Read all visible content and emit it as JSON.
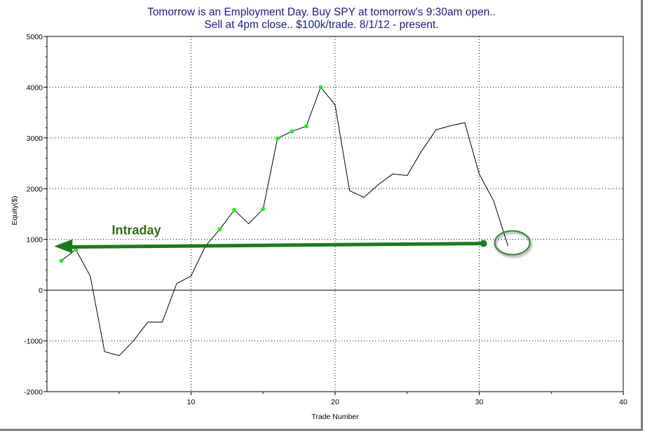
{
  "chart_data": {
    "type": "line",
    "title": "Tomorrow is an Employment Day. Buy SPY at tomorrow's 9:30am open..",
    "subtitle": "Sell at 4pm close.. $100k/trade. 8/1/12 - present.",
    "xlabel": "Trade Number",
    "ylabel": "Equity($)",
    "xlim": [
      0,
      40
    ],
    "ylim": [
      -2000,
      5000
    ],
    "x_ticks": [
      10,
      20,
      30,
      40
    ],
    "y_ticks": [
      -2000,
      -1000,
      0,
      1000,
      2000,
      3000,
      4000,
      5000
    ],
    "grid": true,
    "line_color": "#000000",
    "marker_color": "#22ee22",
    "series": [
      {
        "x": [
          1,
          2,
          3,
          4,
          5,
          6,
          7,
          8,
          9,
          10,
          11,
          12,
          13,
          14,
          15,
          16,
          17,
          18,
          19,
          20,
          21,
          22,
          23,
          24,
          25,
          26,
          27,
          28,
          29,
          30,
          31,
          32
        ],
        "values": [
          580,
          800,
          280,
          -1210,
          -1290,
          -1000,
          -630,
          -630,
          130,
          280,
          870,
          1200,
          1580,
          1310,
          1600,
          2990,
          3130,
          3230,
          4000,
          3650,
          1960,
          1830,
          2080,
          2290,
          2260,
          2740,
          3160,
          3240,
          3300,
          2290,
          1760,
          870
        ]
      }
    ],
    "highlighted_x": [
      1,
      2,
      11,
      12,
      13,
      15,
      16,
      17,
      18,
      19
    ],
    "annotations": [
      {
        "label": "Intraday",
        "type": "arrow",
        "from_x": 30.3,
        "to_x": 0.5,
        "y": 920,
        "color": "#1e7a1e",
        "text_color": "#2e6b12"
      },
      {
        "type": "ellipse",
        "center_x": 32.3,
        "center_y": 920,
        "color": "#3c8a3c"
      }
    ]
  }
}
